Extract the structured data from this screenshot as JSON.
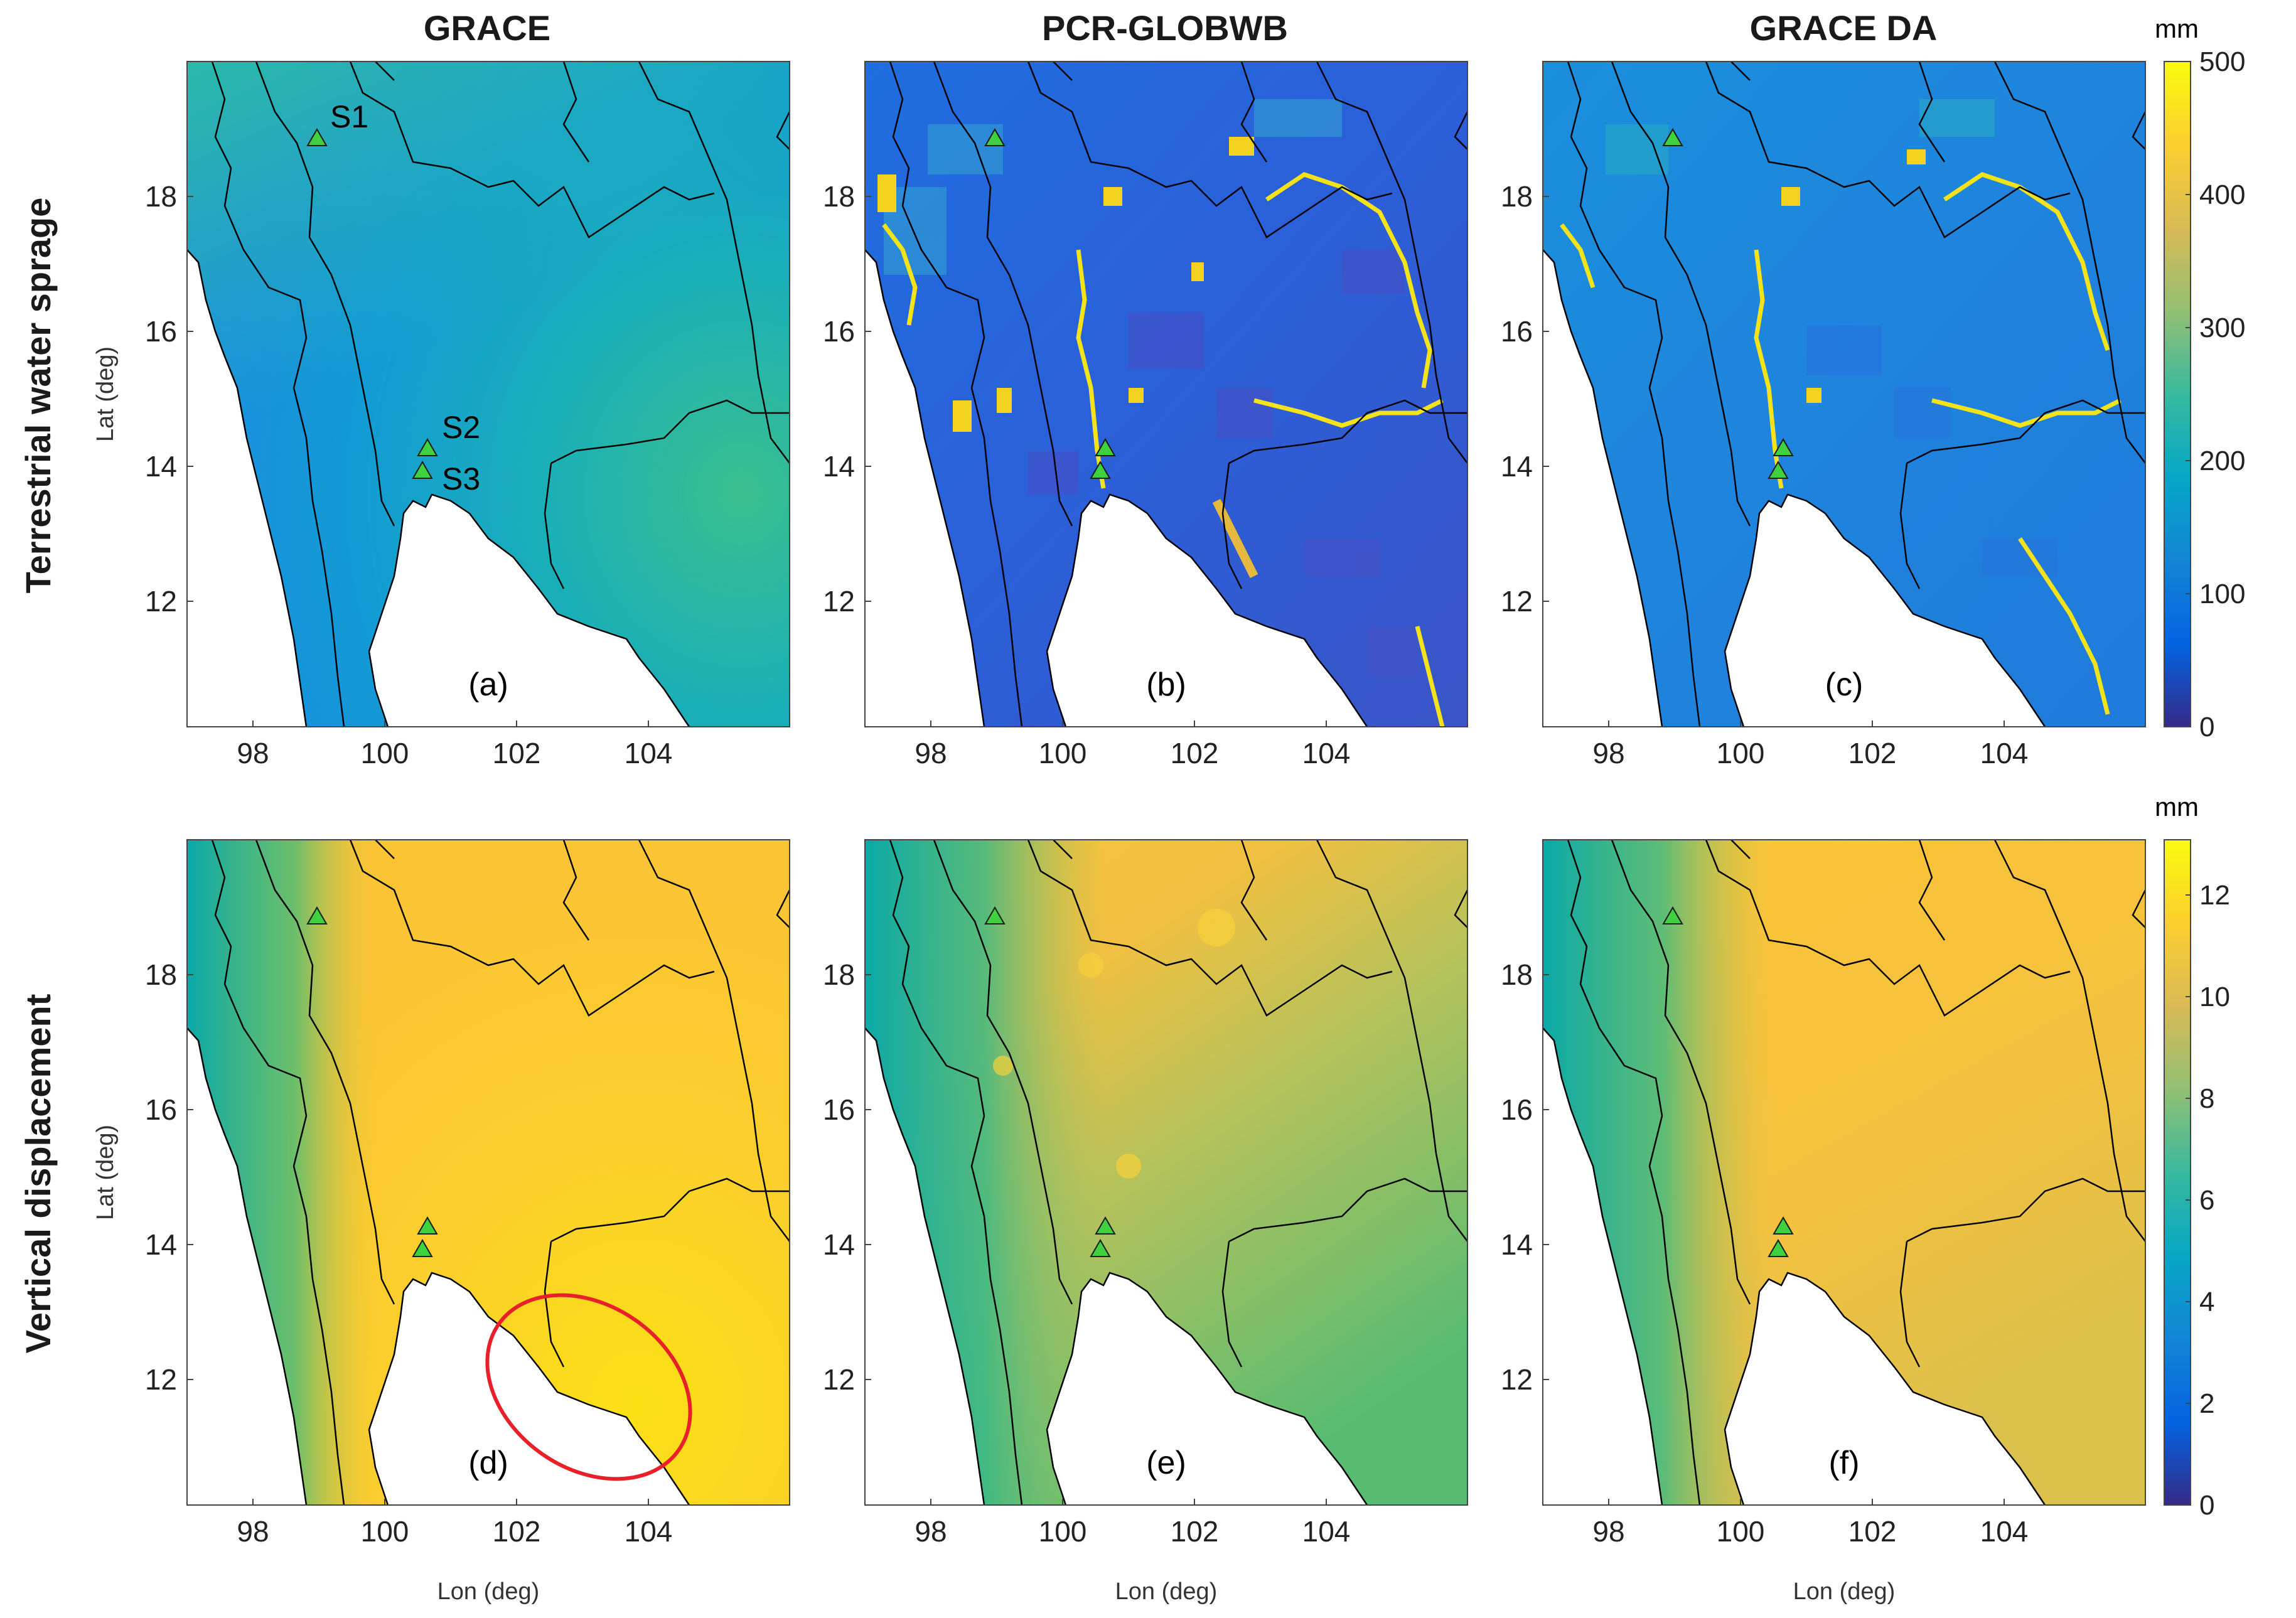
{
  "columns": [
    "GRACE",
    "PCR-GLOBWB",
    "GRACE DA"
  ],
  "rows": [
    "Terrestrial water sprage",
    "Vertical displacement"
  ],
  "axes": {
    "x_label": "Lon (deg)",
    "y_label": "Lat (deg)",
    "x_ticks": [
      "98",
      "100",
      "102",
      "104"
    ],
    "y_ticks": [
      "18",
      "16",
      "14",
      "12"
    ]
  },
  "panels": [
    {
      "label": "(a)",
      "row": 0,
      "col": 0
    },
    {
      "label": "(b)",
      "row": 0,
      "col": 1
    },
    {
      "label": "(c)",
      "row": 0,
      "col": 2
    },
    {
      "label": "(d)",
      "row": 1,
      "col": 0
    },
    {
      "label": "(e)",
      "row": 1,
      "col": 1
    },
    {
      "label": "(f)",
      "row": 1,
      "col": 2
    }
  ],
  "stations": [
    {
      "label": "S1",
      "lon": 99.0,
      "lat": 18.8
    },
    {
      "label": "S2",
      "lon": 100.6,
      "lat": 14.1
    },
    {
      "label": "S3",
      "lon": 100.5,
      "lat": 13.75
    }
  ],
  "colorbars": [
    {
      "unit": "mm",
      "ticks": [
        "500",
        "400",
        "300",
        "200",
        "100",
        "0"
      ]
    },
    {
      "unit": "mm",
      "ticks": [
        "12",
        "10",
        "8",
        "6",
        "4",
        "2",
        "0"
      ]
    }
  ],
  "annotation": {
    "shape": "ellipse",
    "color": "#e8202a",
    "panel": "(d)"
  },
  "colors": {
    "parula": [
      "#352a87",
      "#0363e1",
      "#1485d4",
      "#06a7c6",
      "#38b99e",
      "#92bf73",
      "#d9ba56",
      "#fcce2e",
      "#f9fb0e"
    ],
    "station_marker": "#3fd13f",
    "border": "#000000"
  }
}
